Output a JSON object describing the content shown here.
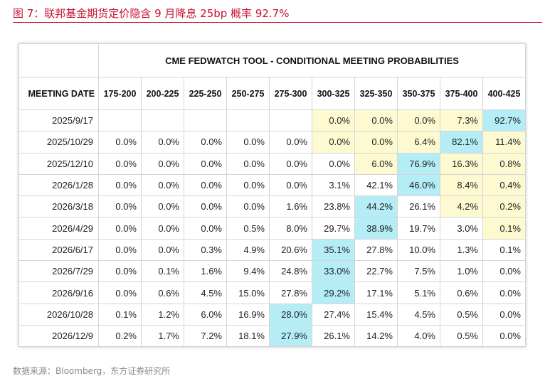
{
  "figure_title": "图 7：联邦基金期货定价隐含 9 月降息 25bp 概率 92.7%",
  "table_title": "CME FEDWATCH TOOL - CONDITIONAL MEETING PROBABILITIES",
  "columns": [
    "MEETING DATE",
    "175-200",
    "200-225",
    "225-250",
    "250-275",
    "275-300",
    "300-325",
    "325-350",
    "350-375",
    "375-400",
    "400-425"
  ],
  "rows": [
    {
      "date": "2025/9/17",
      "values": [
        "",
        "",
        "",
        "",
        "",
        "0.0%",
        "0.0%",
        "0.0%",
        "7.3%",
        "92.7%"
      ]
    },
    {
      "date": "2025/10/29",
      "values": [
        "0.0%",
        "0.0%",
        "0.0%",
        "0.0%",
        "0.0%",
        "0.0%",
        "0.0%",
        "6.4%",
        "82.1%",
        "11.4%"
      ]
    },
    {
      "date": "2025/12/10",
      "values": [
        "0.0%",
        "0.0%",
        "0.0%",
        "0.0%",
        "0.0%",
        "0.0%",
        "6.0%",
        "76.9%",
        "16.3%",
        "0.8%"
      ]
    },
    {
      "date": "2026/1/28",
      "values": [
        "0.0%",
        "0.0%",
        "0.0%",
        "0.0%",
        "0.0%",
        "3.1%",
        "42.1%",
        "46.0%",
        "8.4%",
        "0.4%"
      ]
    },
    {
      "date": "2026/3/18",
      "values": [
        "0.0%",
        "0.0%",
        "0.0%",
        "0.0%",
        "1.6%",
        "23.8%",
        "44.2%",
        "26.1%",
        "4.2%",
        "0.2%"
      ]
    },
    {
      "date": "2026/4/29",
      "values": [
        "0.0%",
        "0.0%",
        "0.0%",
        "0.5%",
        "8.0%",
        "29.7%",
        "38.9%",
        "19.7%",
        "3.0%",
        "0.1%"
      ]
    },
    {
      "date": "2026/6/17",
      "values": [
        "0.0%",
        "0.0%",
        "0.3%",
        "4.9%",
        "20.6%",
        "35.1%",
        "27.8%",
        "10.0%",
        "1.3%",
        "0.1%"
      ]
    },
    {
      "date": "2026/7/29",
      "values": [
        "0.0%",
        "0.1%",
        "1.6%",
        "9.4%",
        "24.8%",
        "33.0%",
        "22.7%",
        "7.5%",
        "1.0%",
        "0.0%"
      ]
    },
    {
      "date": "2026/9/16",
      "values": [
        "0.0%",
        "0.6%",
        "4.5%",
        "15.0%",
        "27.8%",
        "29.2%",
        "17.1%",
        "5.1%",
        "0.6%",
        "0.0%"
      ]
    },
    {
      "date": "2026/10/28",
      "values": [
        "0.1%",
        "1.2%",
        "6.0%",
        "16.9%",
        "28.0%",
        "27.4%",
        "15.4%",
        "4.5%",
        "0.5%",
        "0.0%"
      ]
    },
    {
      "date": "2026/12/9",
      "values": [
        "0.2%",
        "1.7%",
        "7.2%",
        "18.1%",
        "27.9%",
        "26.1%",
        "14.2%",
        "4.0%",
        "0.5%",
        "0.0%"
      ]
    }
  ],
  "highlight_colors": {
    "current_rate_range": "#fdfad1",
    "highest_probability": "#b5edf7"
  },
  "source": "数据来源：Bloomberg，东方证券研究所"
}
